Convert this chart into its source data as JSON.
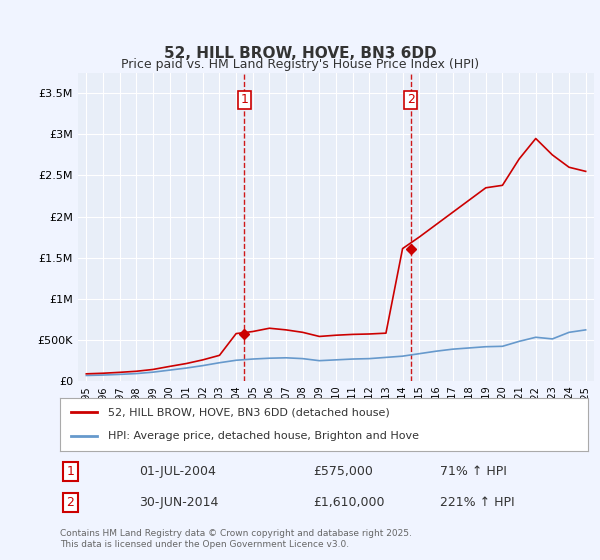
{
  "title": "52, HILL BROW, HOVE, BN3 6DD",
  "subtitle": "Price paid vs. HM Land Registry's House Price Index (HPI)",
  "legend_label_red": "52, HILL BROW, HOVE, BN3 6DD (detached house)",
  "legend_label_blue": "HPI: Average price, detached house, Brighton and Hove",
  "sale1_label": "1",
  "sale1_date": "01-JUL-2004",
  "sale1_price": "£575,000",
  "sale1_hpi": "71% ↑ HPI",
  "sale2_label": "2",
  "sale2_date": "30-JUN-2014",
  "sale2_price": "£1,610,000",
  "sale2_hpi": "221% ↑ HPI",
  "footer": "Contains HM Land Registry data © Crown copyright and database right 2025.\nThis data is licensed under the Open Government Licence v3.0.",
  "red_color": "#cc0000",
  "blue_color": "#6699cc",
  "dashed_color": "#cc0000",
  "bg_color": "#f0f4ff",
  "plot_bg": "#e8eef8",
  "grid_color": "#ffffff",
  "sale1_x": 2004.5,
  "sale2_x": 2014.5,
  "ylim_max": 3750000,
  "xlim_min": 1994.5,
  "xlim_max": 2025.5,
  "yticks": [
    0,
    500000,
    1000000,
    1500000,
    2000000,
    2500000,
    3000000,
    3500000
  ],
  "ytick_labels": [
    "£0",
    "£500K",
    "£1M",
    "£1.5M",
    "£2M",
    "£2.5M",
    "£3M",
    "£3.5M"
  ],
  "xtick_years": [
    1995,
    1996,
    1997,
    1998,
    1999,
    2000,
    2001,
    2002,
    2003,
    2004,
    2005,
    2006,
    2007,
    2008,
    2009,
    2010,
    2011,
    2012,
    2013,
    2014,
    2015,
    2016,
    2017,
    2018,
    2019,
    2020,
    2021,
    2022,
    2023,
    2024,
    2025
  ],
  "hpi_years": [
    1995,
    1996,
    1997,
    1998,
    1999,
    2000,
    2001,
    2002,
    2003,
    2004,
    2005,
    2006,
    2007,
    2008,
    2009,
    2010,
    2011,
    2012,
    2013,
    2014,
    2015,
    2016,
    2017,
    2018,
    2019,
    2020,
    2021,
    2022,
    2023,
    2024,
    2025
  ],
  "hpi_values": [
    65000,
    70000,
    78000,
    88000,
    105000,
    130000,
    155000,
    185000,
    220000,
    250000,
    265000,
    275000,
    280000,
    270000,
    245000,
    255000,
    265000,
    270000,
    285000,
    300000,
    330000,
    360000,
    385000,
    400000,
    415000,
    420000,
    480000,
    530000,
    510000,
    590000,
    620000
  ],
  "red_years": [
    1995,
    1996,
    1997,
    1998,
    1999,
    2000,
    2001,
    2002,
    2003,
    2004,
    2005,
    2006,
    2007,
    2008,
    2009,
    2010,
    2011,
    2012,
    2013,
    2014,
    2015,
    2016,
    2017,
    2018,
    2019,
    2020,
    2021,
    2022,
    2023,
    2024,
    2025
  ],
  "red_values": [
    85000,
    92000,
    103000,
    116000,
    138000,
    175000,
    210000,
    255000,
    310000,
    575000,
    600000,
    640000,
    620000,
    590000,
    540000,
    555000,
    565000,
    570000,
    580000,
    1610000,
    1750000,
    1900000,
    2050000,
    2200000,
    2350000,
    2380000,
    2700000,
    2950000,
    2750000,
    2600000,
    2550000
  ]
}
